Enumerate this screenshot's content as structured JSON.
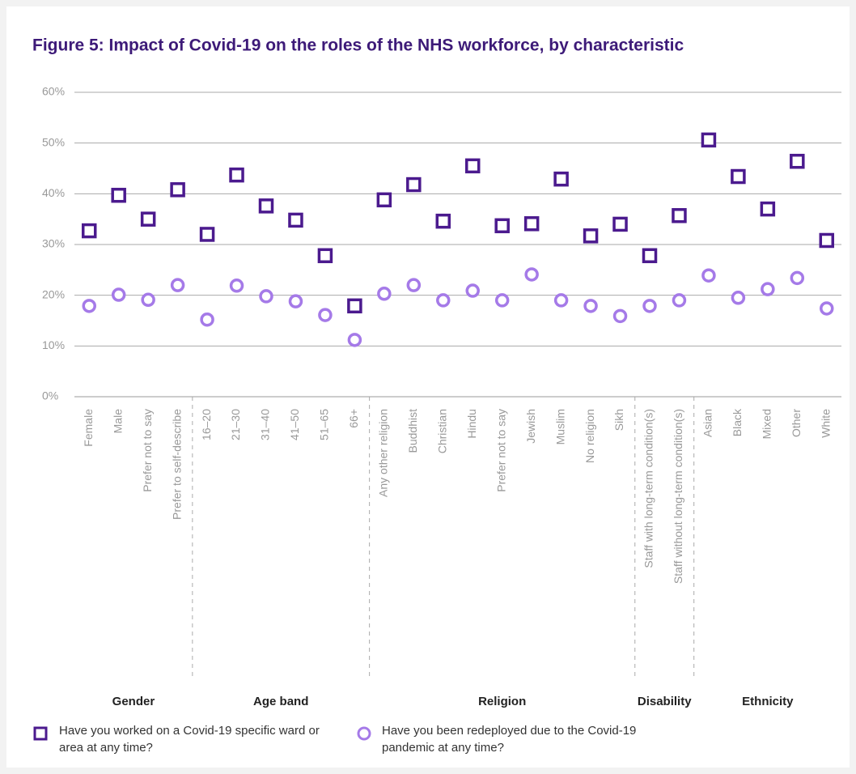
{
  "chart_data": {
    "type": "dot",
    "title": "Figure 5: Impact of Covid-19 on the roles of the NHS workforce, by characteristic",
    "categories": [
      "Female",
      "Male",
      "Prefer not to say",
      "Prefer to self-describe",
      "16–20",
      "21–30",
      "31–40",
      "41–50",
      "51–65",
      "66+",
      "Any other religion",
      "Buddhist",
      "Christian",
      "Hindu",
      "Prefer not to say",
      "Jewish",
      "Muslim",
      "No religion",
      "Sikh",
      "Staff with long-term condition(s)",
      "Staff without long-term condition(s)",
      "Asian",
      "Black",
      "Mixed",
      "Other",
      "White"
    ],
    "groups": [
      {
        "name": "Gender",
        "size": 4
      },
      {
        "name": "Age band",
        "size": 6
      },
      {
        "name": "Religion",
        "size": 9
      },
      {
        "name": "Disability",
        "size": 2
      },
      {
        "name": "Ethnicity",
        "size": 5
      }
    ],
    "series": [
      {
        "name": "Have you worked on a Covid-19 specific ward or area at any time?",
        "marker": "square",
        "color": "#4b1a8e",
        "values": [
          32.7,
          39.7,
          35,
          40.8,
          32,
          43.7,
          37.6,
          34.8,
          27.8,
          17.9,
          38.8,
          41.8,
          34.6,
          45.5,
          33.7,
          34.1,
          42.9,
          31.7,
          34,
          27.8,
          35.7,
          50.6,
          43.4,
          37,
          46.4,
          30.8
        ]
      },
      {
        "name": "Have you been redeployed due to the Covid-19 pandemic at any time?",
        "marker": "circle",
        "color": "#a57ae8",
        "values": [
          17.9,
          20.1,
          19.1,
          22,
          15.2,
          21.9,
          19.8,
          18.8,
          16.1,
          11.2,
          20.3,
          22,
          19,
          20.9,
          19,
          24.1,
          19,
          17.9,
          15.9,
          17.9,
          19,
          23.9,
          19.5,
          21.2,
          23.4,
          17.4
        ]
      }
    ],
    "ylim": [
      0,
      60
    ],
    "yticks": [
      {
        "value": 0,
        "label": "0%"
      },
      {
        "value": 10,
        "label": "10%"
      },
      {
        "value": 20,
        "label": "20%"
      },
      {
        "value": 30,
        "label": "30%"
      },
      {
        "value": 40,
        "label": "40%"
      },
      {
        "value": 50,
        "label": "50%"
      },
      {
        "value": 60,
        "label": "60%"
      }
    ],
    "grid": true
  }
}
